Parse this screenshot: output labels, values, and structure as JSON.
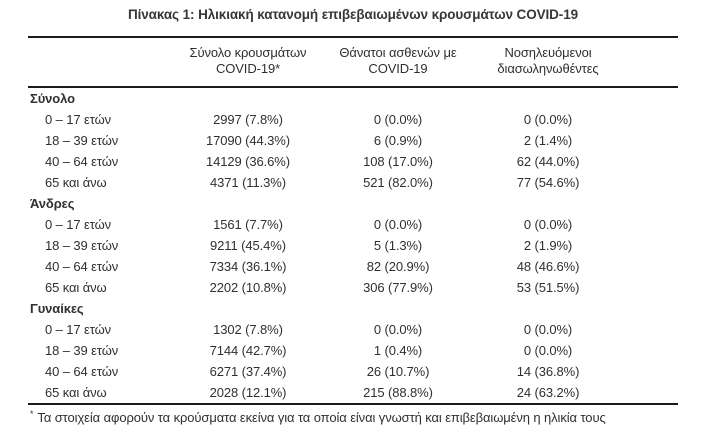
{
  "page": {
    "title": "Πίνακας 1: Ηλικιακή κατανομή επιβεβαιωμένων κρουσμάτων COVID-19"
  },
  "colors": {
    "background": "#ffffff",
    "text": "#2d3034",
    "rule": "#1b1b1b"
  },
  "table": {
    "columns": [
      "Σύνολο κρουσμάτων COVID-19*",
      "Θάνατοι ασθενών με COVID-19",
      "Νοσηλευόμενοι διασωληνωθέντες"
    ],
    "sections": [
      {
        "label": "Σύνολο",
        "rows": [
          {
            "label": "0 – 17 ετών",
            "cases": "2997 (7.8%)",
            "deaths": "0 (0.0%)",
            "intubated": "0 (0.0%)"
          },
          {
            "label": "18 – 39 ετών",
            "cases": "17090 (44.3%)",
            "deaths": "6 (0.9%)",
            "intubated": "2 (1.4%)"
          },
          {
            "label": "40 – 64 ετών",
            "cases": "14129 (36.6%)",
            "deaths": "108 (17.0%)",
            "intubated": "62 (44.0%)"
          },
          {
            "label": "65 και άνω",
            "cases": "4371 (11.3%)",
            "deaths": "521 (82.0%)",
            "intubated": "77 (54.6%)"
          }
        ]
      },
      {
        "label": "Άνδρες",
        "rows": [
          {
            "label": "0 – 17 ετών",
            "cases": "1561 (7.7%)",
            "deaths": "0 (0.0%)",
            "intubated": "0 (0.0%)"
          },
          {
            "label": "18 – 39 ετών",
            "cases": "9211 (45.4%)",
            "deaths": "5 (1.3%)",
            "intubated": "2 (1.9%)"
          },
          {
            "label": "40 – 64 ετών",
            "cases": "7334 (36.1%)",
            "deaths": "82 (20.9%)",
            "intubated": "48 (46.6%)"
          },
          {
            "label": "65 και άνω",
            "cases": "2202 (10.8%)",
            "deaths": "306 (77.9%)",
            "intubated": "53 (51.5%)"
          }
        ]
      },
      {
        "label": "Γυναίκες",
        "rows": [
          {
            "label": "0 – 17 ετών",
            "cases": "1302 (7.8%)",
            "deaths": "0 (0.0%)",
            "intubated": "0 (0.0%)"
          },
          {
            "label": "18 – 39 ετών",
            "cases": "7144 (42.7%)",
            "deaths": "1 (0.4%)",
            "intubated": "0 (0.0%)"
          },
          {
            "label": "40 – 64 ετών",
            "cases": "6271 (37.4%)",
            "deaths": "26 (10.7%)",
            "intubated": "14 (36.8%)"
          },
          {
            "label": "65 και άνω",
            "cases": "2028 (12.1%)",
            "deaths": "215 (88.8%)",
            "intubated": "24 (63.2%)"
          }
        ]
      }
    ]
  },
  "footnote": {
    "marker": "*",
    "text": "Τα στοιχεία αφορούν τα κρούσματα εκείνα για τα οποία είναι γνωστή και επιβεβαιωμένη η ηλικία τους"
  }
}
